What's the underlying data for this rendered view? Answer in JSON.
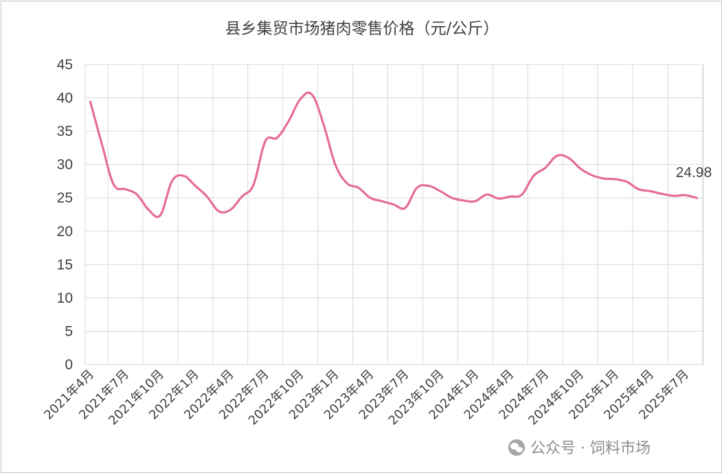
{
  "chart_data": {
    "type": "line",
    "title": "县乡集贸市场猪肉零售价格（元/公斤）",
    "xlabel": "",
    "ylabel": "",
    "ylim": [
      0,
      45
    ],
    "yticks": [
      "0",
      "5",
      "10",
      "15",
      "20",
      "25",
      "30",
      "35",
      "40",
      "45"
    ],
    "xtick_labels": [
      "2021年4月",
      "2021年7月",
      "2021年10月",
      "2022年1月",
      "2022年4月",
      "2022年7月",
      "2022年10月",
      "2023年1月",
      "2023年4月",
      "2023年7月",
      "2023年10月",
      "2024年1月",
      "2024年4月",
      "2024年7月",
      "2024年10月",
      "2025年1月",
      "2025年4月",
      "2025年7月"
    ],
    "grid": true,
    "series_color": "#e56b9a",
    "series": [
      {
        "values": [
          39.4,
          33.0,
          27.0,
          26.3,
          25.5,
          23.2,
          22.4,
          27.5,
          28.3,
          26.8,
          25.2,
          23.0,
          23.2,
          25.2,
          27.0,
          33.5,
          34.0,
          36.5,
          39.8,
          40.5,
          36.0,
          30.0,
          27.2,
          26.5,
          25.0,
          24.5,
          24.0,
          23.5,
          26.5,
          26.8,
          26.0,
          25.0,
          24.6,
          24.5,
          25.5,
          24.9,
          25.2,
          25.5,
          28.3,
          29.5,
          31.3,
          31.0,
          29.4,
          28.4,
          27.9,
          27.8,
          27.4,
          26.3,
          26.0,
          25.6,
          25.3,
          25.4,
          24.98
        ]
      }
    ],
    "end_label": "24.98"
  },
  "watermark": {
    "icon": "wechat-icon",
    "text": "公众号 · 饲料市场"
  }
}
